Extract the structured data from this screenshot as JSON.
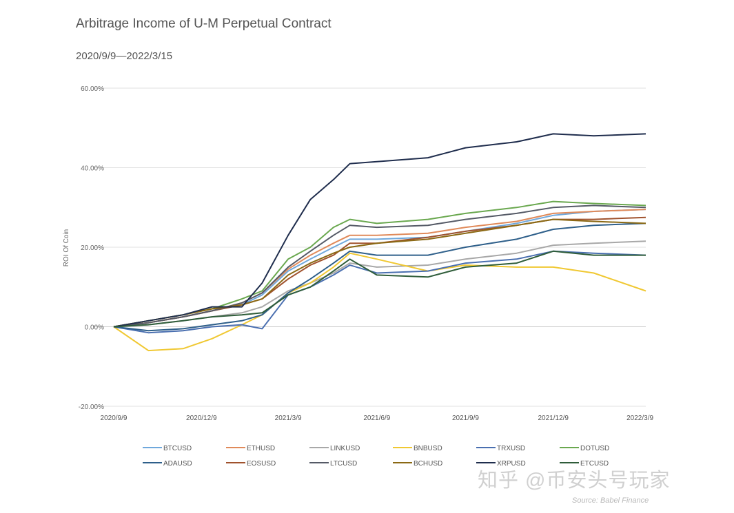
{
  "chart_data": {
    "type": "line",
    "title": "Arbitrage Income of U-M Perpetual Contract",
    "subtitle": "2020/9/9—2022/3/15",
    "ylabel": "ROI Of Coin",
    "xlabel": "",
    "ylim": [
      -20,
      60
    ],
    "yticks": [
      "60.00%",
      "40.00%",
      "20.00%",
      "0.00%",
      "-20.00%"
    ],
    "ytick_values": [
      60,
      40,
      20,
      0,
      -20
    ],
    "xticks": [
      "2020/9/9",
      "2020/12/9",
      "2021/3/9",
      "2021/6/9",
      "2021/9/9",
      "2021/12/9",
      "2022/3/9"
    ],
    "xlim": [
      "2020-09-09",
      "2022-03-15"
    ],
    "grid": true,
    "legend_position": "bottom",
    "x": [
      "2020-09-09",
      "2020-10-15",
      "2020-11-20",
      "2020-12-20",
      "2021-01-20",
      "2021-02-10",
      "2021-03-09",
      "2021-04-01",
      "2021-04-25",
      "2021-05-12",
      "2021-06-09",
      "2021-08-01",
      "2021-09-09",
      "2021-11-01",
      "2021-12-09",
      "2022-01-20",
      "2022-03-15"
    ],
    "series": [
      {
        "name": "BTCUSD",
        "color": "#6fa8dc",
        "values": [
          0,
          1,
          2.5,
          4,
          5.5,
          8,
          14,
          17,
          20,
          22,
          22,
          22.5,
          24,
          26,
          28,
          29,
          29.5
        ]
      },
      {
        "name": "ETHUSD",
        "color": "#e08a5a",
        "values": [
          0,
          1,
          2.5,
          4,
          6,
          8.5,
          14.5,
          18,
          21,
          23,
          23,
          23.5,
          25,
          26.5,
          28.5,
          29,
          29.5
        ]
      },
      {
        "name": "LINKUSD",
        "color": "#a8a8a8",
        "values": [
          0,
          0.5,
          1.5,
          2.5,
          3.5,
          5,
          9,
          11,
          13.5,
          16,
          15,
          15.5,
          17,
          18.5,
          20.5,
          21,
          21.5
        ]
      },
      {
        "name": "BNBUSD",
        "color": "#f0c832",
        "values": [
          0,
          -6,
          -5.5,
          -3,
          0.5,
          3,
          8.5,
          11,
          15,
          18.5,
          17,
          14,
          15.5,
          15,
          15,
          13.5,
          9
        ]
      },
      {
        "name": "TRXUSD",
        "color": "#4a6fb0",
        "values": [
          0,
          -1.5,
          -1,
          0,
          0.5,
          -0.5,
          8,
          10,
          13,
          15.5,
          13.5,
          14,
          16,
          17,
          19,
          18.5,
          18
        ]
      },
      {
        "name": "DOTUSD",
        "color": "#6aa84f",
        "values": [
          0,
          1.5,
          3,
          4.5,
          7,
          9,
          17,
          20,
          25,
          27,
          26,
          27,
          28.5,
          30,
          31.5,
          31,
          30.5
        ]
      },
      {
        "name": "ADAUSD",
        "color": "#2e5f8a",
        "values": [
          0,
          -1,
          -0.5,
          0.5,
          1.5,
          3,
          8.5,
          12,
          16,
          19,
          18,
          18,
          20,
          22,
          24.5,
          25.5,
          26
        ]
      },
      {
        "name": "EOSUSD",
        "color": "#a0522d",
        "values": [
          0,
          1,
          2.5,
          4,
          5.5,
          7,
          12,
          15.5,
          18,
          21,
          21,
          22.5,
          24,
          25.5,
          27,
          27,
          27.5
        ]
      },
      {
        "name": "LTCUSD",
        "color": "#555a66",
        "values": [
          0,
          1,
          2.5,
          4,
          6,
          8.5,
          15,
          19,
          23,
          25.5,
          25,
          25.5,
          27,
          28.5,
          30,
          30.5,
          30
        ]
      },
      {
        "name": "BCHUSD",
        "color": "#8b6914",
        "values": [
          0,
          1.5,
          3,
          4.5,
          5.5,
          7,
          13,
          16,
          18.5,
          20,
          21,
          22,
          23.5,
          25.5,
          27,
          26.5,
          26
        ]
      },
      {
        "name": "XRPUSD",
        "color": "#1f2d4d",
        "values": [
          0,
          1.5,
          3,
          5,
          5,
          11,
          23,
          32,
          37,
          41,
          41.5,
          42.5,
          45,
          46.5,
          48.5,
          48,
          48.5
        ]
      },
      {
        "name": "ETCUSD",
        "color": "#2f5d3a",
        "values": [
          0,
          0.5,
          1.5,
          2.5,
          3,
          3.5,
          8,
          10,
          14,
          17,
          13,
          12.5,
          15,
          16,
          19,
          18,
          18
        ]
      }
    ],
    "source": "Source: Babel Finance",
    "watermark": "知乎 @币安头号玩家"
  }
}
